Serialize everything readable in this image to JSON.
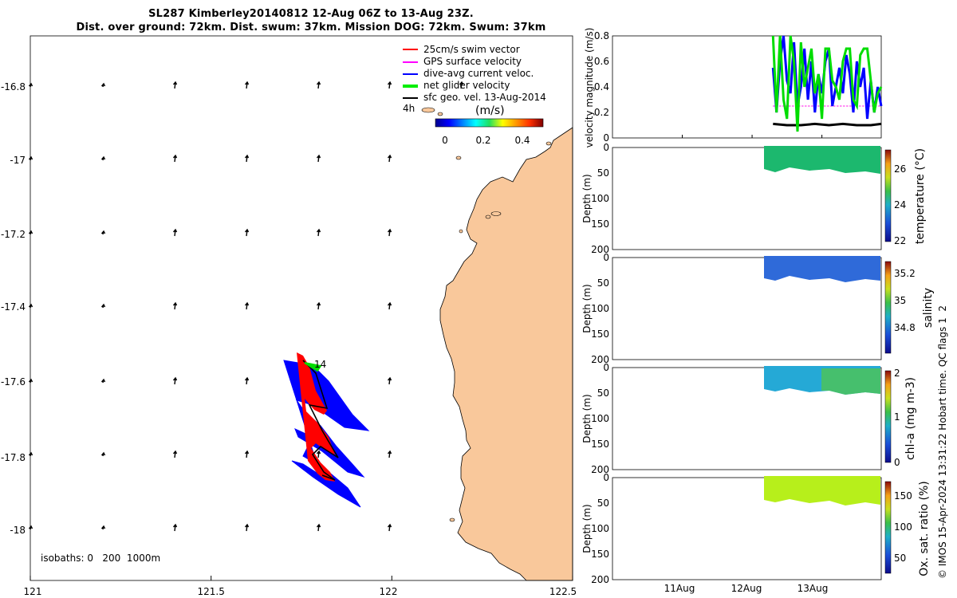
{
  "title_line1": "SL287 Kimberley20140812 12-Aug 06Z to 13-Aug 23Z.",
  "title_line2": "Dist. over ground: 72km. Dist. swum: 37km. Mission DOG: 72km. Swum: 37km",
  "map": {
    "x_ticks": [
      "121",
      "121.5",
      "122",
      "122.5"
    ],
    "y_ticks": [
      "-16.8",
      "-17",
      "-17.2",
      "-17.4",
      "-17.6",
      "-17.8",
      "-18"
    ],
    "xlim": [
      121,
      122.5
    ],
    "ylim": [
      -18.15,
      -16.65
    ],
    "isobaths_label": "isobaths: 0   200  1000m",
    "legend": [
      {
        "label": "25cm/s swim vector",
        "color": "#ff0000"
      },
      {
        "label": "GPS surface velocity",
        "color": "#ff00ff"
      },
      {
        "label": "dive-avg current veloc.",
        "color": "#0000ff"
      },
      {
        "label": "net glider velocity",
        "color": "#00ee00"
      },
      {
        "label": "sfc geo. vel. 13-Aug-2014",
        "color": "#000000"
      }
    ],
    "scale_label": "4h",
    "colorbar_title": "(m/s)",
    "colorbar_ticks": [
      "0",
      "0.2",
      "0.4"
    ],
    "end_marker_label": "14",
    "colors": {
      "land": "#f9c89b",
      "track_red": "#ff0000",
      "current_blue": "#0000ff",
      "net_green": "#00dd00"
    }
  },
  "chart_data": [
    {
      "type": "line",
      "ylabel": "velocity magnitude (m/s)",
      "ylim": [
        0,
        0.8
      ],
      "y_ticks": [
        "0",
        "0.2",
        "0.4",
        "0.6",
        "0.8"
      ],
      "x_range_days": [
        10.0,
        13.85
      ],
      "series": [
        {
          "name": "net glider velocity",
          "color": "#00dd00",
          "x": [
            12.3,
            12.35,
            12.4,
            12.45,
            12.5,
            12.55,
            12.6,
            12.65,
            12.7,
            12.75,
            12.8,
            12.85,
            12.9,
            12.95,
            13.0,
            13.05,
            13.1,
            13.15,
            13.2,
            13.25,
            13.3,
            13.35,
            13.4,
            13.45,
            13.5,
            13.55,
            13.6,
            13.65,
            13.7,
            13.75,
            13.8,
            13.85
          ],
          "y": [
            0.8,
            0.2,
            0.8,
            0.3,
            0.15,
            0.8,
            0.6,
            0.05,
            0.75,
            0.4,
            0.55,
            0.7,
            0.35,
            0.5,
            0.15,
            0.7,
            0.7,
            0.45,
            0.4,
            0.3,
            0.6,
            0.7,
            0.7,
            0.3,
            0.25,
            0.65,
            0.7,
            0.7,
            0.45,
            0.2,
            0.35,
            0.4
          ]
        },
        {
          "name": "dive-avg current veloc.",
          "color": "#0000ff",
          "x": [
            12.3,
            12.35,
            12.4,
            12.45,
            12.5,
            12.55,
            12.6,
            12.65,
            12.7,
            12.75,
            12.8,
            12.85,
            12.9,
            12.95,
            13.0,
            13.05,
            13.1,
            13.15,
            13.2,
            13.25,
            13.3,
            13.35,
            13.4,
            13.45,
            13.5,
            13.55,
            13.6,
            13.65,
            13.7,
            13.75,
            13.8,
            13.85
          ],
          "y": [
            0.55,
            0.2,
            0.6,
            0.8,
            0.45,
            0.35,
            0.75,
            0.25,
            0.4,
            0.7,
            0.3,
            0.6,
            0.2,
            0.5,
            0.35,
            0.6,
            0.7,
            0.25,
            0.4,
            0.55,
            0.35,
            0.65,
            0.5,
            0.2,
            0.6,
            0.4,
            0.55,
            0.15,
            0.45,
            0.2,
            0.4,
            0.25
          ]
        },
        {
          "name": "GPS surface velocity",
          "color": "#ff00ff",
          "x": [
            12.3,
            13.85
          ],
          "y": [
            0.25,
            0.25
          ]
        },
        {
          "name": "25cm/s swim vector",
          "color": "#ff0000",
          "x": [
            12.3,
            13.85
          ],
          "y": [
            0.25,
            0.25
          ]
        },
        {
          "name": "sfc geo. vel.",
          "color": "#000000",
          "x": [
            12.3,
            12.5,
            12.7,
            12.9,
            13.1,
            13.3,
            13.5,
            13.7,
            13.85
          ],
          "y": [
            0.11,
            0.1,
            0.1,
            0.11,
            0.1,
            0.11,
            0.1,
            0.1,
            0.11
          ]
        }
      ]
    },
    {
      "type": "heatmap",
      "ylabel": "Depth (m)",
      "clabel": "temperature (°C)",
      "ylim": [
        0,
        200
      ],
      "clim": [
        21.8,
        27.2
      ],
      "y_ticks": [
        "0",
        "50",
        "100",
        "150",
        "200"
      ],
      "c_ticks": [
        "22",
        "24",
        "26"
      ],
      "fill_color": "#19b873"
    },
    {
      "type": "heatmap",
      "ylabel": "Depth (m)",
      "clabel": "salinity",
      "ylim": [
        0,
        200
      ],
      "clim": [
        34.65,
        35.3
      ],
      "y_ticks": [
        "0",
        "50",
        "100",
        "150",
        "200"
      ],
      "c_ticks": [
        "34.8",
        "35",
        "35.2"
      ],
      "fill_color": "#2e6fd6"
    },
    {
      "type": "heatmap",
      "ylabel": "Depth (m)",
      "clabel": "chl-a (mg m-3)",
      "ylim": [
        0,
        200
      ],
      "clim": [
        0,
        2
      ],
      "y_ticks": [
        "0",
        "50",
        "100",
        "150",
        "200"
      ],
      "c_ticks": [
        "0",
        "1",
        "2"
      ],
      "fill_color": "#22a8d8"
    },
    {
      "type": "heatmap",
      "ylabel": "Depth (m)",
      "clabel": "Ox. sat. ratio (%)",
      "ylim": [
        0,
        200
      ],
      "clim": [
        25,
        175
      ],
      "y_ticks": [
        "0",
        "50",
        "100",
        "150",
        "200"
      ],
      "c_ticks": [
        "50",
        "100",
        "150"
      ],
      "fill_color": "#b8ee1a"
    }
  ],
  "time_axis": {
    "labels": [
      "11Aug",
      "12Aug",
      "13Aug"
    ],
    "values": [
      11,
      12,
      13
    ]
  },
  "footer": "© IMOS 15-Apr-2024 13:31:22 Hobart time. QC flags 1  2"
}
